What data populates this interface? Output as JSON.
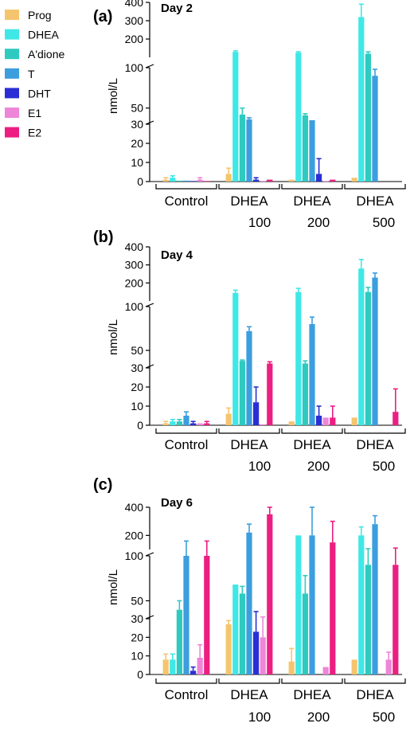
{
  "legend": [
    {
      "label": "Prog",
      "color": "#f5c56e"
    },
    {
      "label": "DHEA",
      "color": "#3fe8e6"
    },
    {
      "label": "A'dione",
      "color": "#2ecac0"
    },
    {
      "label": "T",
      "color": "#3c9ede"
    },
    {
      "label": "DHT",
      "color": "#2b2ed4"
    },
    {
      "label": "E1",
      "color": "#ee86d8"
    },
    {
      "label": "E2",
      "color": "#ec1e82"
    }
  ],
  "ylabel": "nmol/L",
  "group_labels": [
    {
      "line1": "Control",
      "line2": ""
    },
    {
      "line1": "DHEA",
      "line2": "100"
    },
    {
      "line1": "DHEA",
      "line2": "200"
    },
    {
      "line1": "DHEA",
      "line2": "500"
    }
  ],
  "chart_data": [
    {
      "type": "bar",
      "panel": "(a)",
      "title": "Day 2",
      "categories": [
        "Control",
        "DHEA 100",
        "DHEA 200",
        "DHEA 500"
      ],
      "y_segments": [
        {
          "range": [
            0,
            30
          ],
          "ticks": [
            0,
            10,
            20,
            30
          ]
        },
        {
          "range": [
            30,
            100
          ],
          "ticks": [
            50,
            100
          ]
        },
        {
          "range": [
            100,
            400
          ],
          "ticks": [
            200,
            300,
            400
          ]
        }
      ],
      "series": [
        {
          "name": "Prog",
          "values": [
            1,
            4,
            1,
            2
          ],
          "errors": [
            1,
            3,
            0,
            0
          ]
        },
        {
          "name": "DHEA",
          "values": [
            2,
            130,
            125,
            320
          ],
          "errors": [
            1,
            6,
            5,
            70
          ]
        },
        {
          "name": "A'dione",
          "values": [
            0.5,
            42,
            41,
            120
          ],
          "errors": [
            0,
            8,
            2,
            10
          ]
        },
        {
          "name": "T",
          "values": [
            0.5,
            36,
            35,
            90
          ],
          "errors": [
            0,
            2,
            0,
            8
          ]
        },
        {
          "name": "DHT",
          "values": [
            0.3,
            1,
            4,
            null
          ],
          "errors": [
            0,
            1,
            8,
            0
          ]
        },
        {
          "name": "E1",
          "values": [
            1,
            0.3,
            0.3,
            null
          ],
          "errors": [
            1,
            0,
            0,
            0
          ]
        },
        {
          "name": "E2",
          "values": [
            0.3,
            1,
            1,
            null
          ],
          "errors": [
            0,
            0,
            0,
            0
          ]
        }
      ]
    },
    {
      "type": "bar",
      "panel": "(b)",
      "title": "Day 4",
      "categories": [
        "Control",
        "DHEA 100",
        "DHEA 200",
        "DHEA 500"
      ],
      "y_segments": [
        {
          "range": [
            0,
            30
          ],
          "ticks": [
            0,
            10,
            20,
            30
          ]
        },
        {
          "range": [
            30,
            100
          ],
          "ticks": [
            50,
            100
          ]
        },
        {
          "range": [
            100,
            400
          ],
          "ticks": [
            200,
            300,
            400
          ]
        }
      ],
      "series": [
        {
          "name": "Prog",
          "values": [
            1,
            6,
            2,
            4
          ],
          "errors": [
            1,
            3,
            0,
            0
          ]
        },
        {
          "name": "DHEA",
          "values": [
            2,
            145,
            150,
            280
          ],
          "errors": [
            1,
            15,
            20,
            50
          ]
        },
        {
          "name": "A'dione",
          "values": [
            2,
            38,
            35,
            150
          ],
          "errors": [
            1,
            1,
            3,
            25
          ]
        },
        {
          "name": "T",
          "values": [
            5,
            72,
            80,
            230
          ],
          "errors": [
            2,
            5,
            8,
            25
          ]
        },
        {
          "name": "DHT",
          "values": [
            1,
            12,
            5,
            null
          ],
          "errors": [
            1,
            8,
            5,
            0
          ]
        },
        {
          "name": "E1",
          "values": [
            1,
            0.5,
            4,
            null
          ],
          "errors": [
            0,
            0,
            0,
            0
          ]
        },
        {
          "name": "E2",
          "values": [
            1,
            35,
            4,
            7
          ],
          "errors": [
            1,
            2,
            6,
            12
          ]
        }
      ]
    },
    {
      "type": "bar",
      "panel": "(c)",
      "title": "Day 6",
      "categories": [
        "Control",
        "DHEA 100",
        "DHEA 200",
        "DHEA 500"
      ],
      "y_segments": [
        {
          "range": [
            0,
            30
          ],
          "ticks": [
            0,
            10,
            20,
            30
          ]
        },
        {
          "range": [
            30,
            100
          ],
          "ticks": [
            50,
            100
          ]
        },
        {
          "range": [
            100,
            400
          ],
          "ticks": [
            200,
            400
          ]
        }
      ],
      "series": [
        {
          "name": "Prog",
          "values": [
            8,
            27,
            7,
            8
          ],
          "errors": [
            3,
            2,
            7,
            0
          ]
        },
        {
          "name": "DHEA",
          "values": [
            8,
            68,
            200,
            200
          ],
          "errors": [
            3,
            0,
            0,
            60
          ]
        },
        {
          "name": "A'dione",
          "values": [
            40,
            58,
            58,
            90
          ],
          "errors": [
            10,
            8,
            20,
            15
          ]
        },
        {
          "name": "T",
          "values": [
            100,
            220,
            200,
            280
          ],
          "errors": [
            60,
            60,
            200,
            60
          ]
        },
        {
          "name": "DHT",
          "values": [
            2,
            23,
            null,
            null
          ],
          "errors": [
            2,
            15,
            0,
            0
          ]
        },
        {
          "name": "E1",
          "values": [
            9,
            20,
            4,
            8
          ],
          "errors": [
            7,
            12,
            0,
            4
          ]
        },
        {
          "name": "E2",
          "values": [
            100,
            350,
            150,
            90
          ],
          "errors": [
            60,
            200,
            150,
            20
          ]
        }
      ]
    }
  ]
}
